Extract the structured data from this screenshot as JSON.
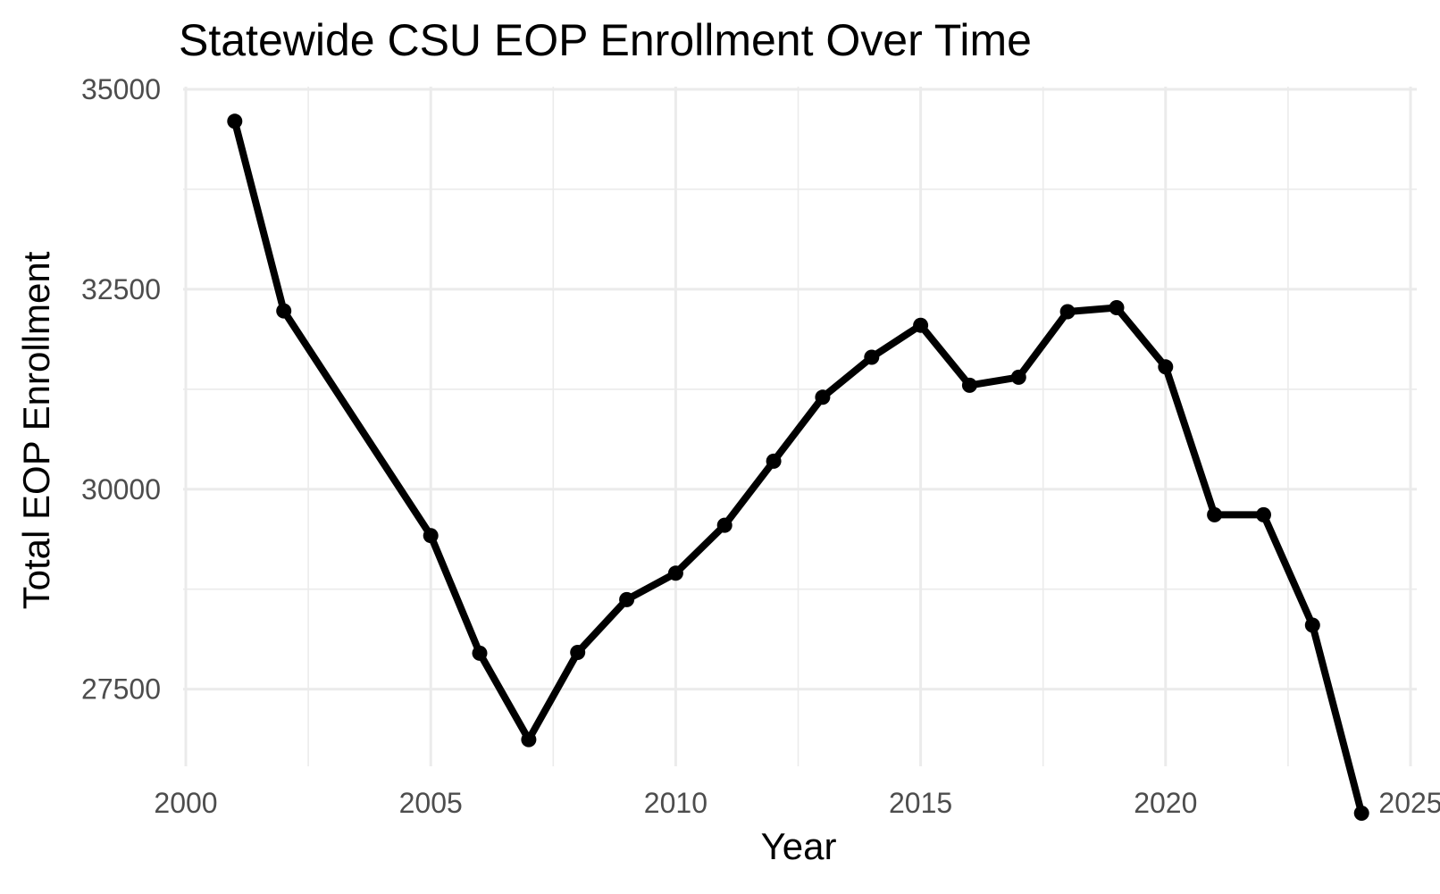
{
  "chart_data": {
    "type": "line",
    "title": "Statewide CSU EOP Enrollment Over Time",
    "xlabel": "Year",
    "ylabel": "Total EOP Enrollment",
    "xlim": [
      2000,
      2025
    ],
    "ylim": [
      26000,
      35000
    ],
    "x_ticks": [
      2000,
      2005,
      2010,
      2015,
      2020,
      2025
    ],
    "y_ticks": [
      27500,
      30000,
      32500,
      35000
    ],
    "grid": true,
    "legend": "none",
    "series": [
      {
        "color": "#000000",
        "x": [
          2001,
          2002,
          2005,
          2006,
          2007,
          2008,
          2009,
          2010,
          2011,
          2012,
          2013,
          2014,
          2015,
          2016,
          2017,
          2018,
          2019,
          2020,
          2021,
          2022,
          2023,
          2024
        ],
        "values": [
          34600,
          32230,
          29420,
          27950,
          26870,
          27960,
          28620,
          28950,
          29550,
          30350,
          31150,
          31650,
          32050,
          31300,
          31400,
          32220,
          32270,
          31530,
          29680,
          29680,
          28300,
          25950
        ]
      }
    ]
  }
}
